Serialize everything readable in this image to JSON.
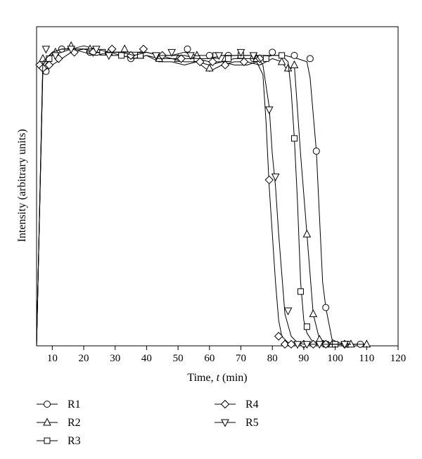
{
  "chart_data": {
    "type": "line",
    "title": "",
    "xlabel_prefix": "Time, ",
    "xlabel_var": "t",
    "xlabel_suffix": " (min)",
    "ylabel": "Intensity (arbitrary units)",
    "xlim": [
      5,
      120
    ],
    "ylim": [
      0,
      100
    ],
    "xticks": [
      10,
      20,
      30,
      40,
      50,
      60,
      70,
      80,
      90,
      100,
      110,
      120
    ],
    "y_tick_labels": false,
    "grid": false,
    "legend_position": "bottom",
    "series": [
      {
        "name": "R1",
        "marker": "circle",
        "x": [
          5,
          7,
          10,
          13,
          16,
          20,
          24,
          28,
          32,
          36,
          40,
          44,
          48,
          52,
          56,
          60,
          64,
          68,
          72,
          76,
          80,
          84,
          88,
          91,
          92,
          94,
          96,
          97,
          99,
          101,
          104,
          108,
          110
        ],
        "y": [
          0,
          87,
          91,
          92,
          93,
          94,
          93,
          92,
          92,
          91,
          92,
          91,
          91,
          92,
          91,
          91,
          91,
          91,
          91,
          91,
          91,
          91,
          90,
          89,
          84,
          61,
          20,
          12,
          2,
          1,
          0.5,
          0.5,
          0.5
        ],
        "marker_x": [
          8,
          13,
          22,
          35,
          44,
          53,
          60,
          66,
          74,
          80,
          87,
          92,
          94,
          97,
          104,
          108
        ],
        "marker_y": [
          86,
          93,
          92,
          90,
          90,
          93,
          91,
          91,
          90,
          92,
          91,
          90,
          61,
          12,
          0.5,
          0.5
        ]
      },
      {
        "name": "R2",
        "marker": "triangle-up",
        "x": [
          5,
          7,
          10,
          13,
          16,
          20,
          24,
          28,
          32,
          36,
          40,
          44,
          48,
          52,
          56,
          60,
          64,
          68,
          72,
          76,
          80,
          83,
          85,
          87,
          89,
          91,
          93,
          95,
          98,
          101,
          105,
          110
        ],
        "y": [
          0,
          88,
          92,
          93,
          93,
          93,
          92,
          92,
          91,
          90,
          91,
          89,
          89,
          88,
          89,
          86,
          88,
          89,
          89,
          88,
          90,
          89,
          86,
          88,
          60,
          35,
          10,
          2,
          1,
          0.5,
          0.5,
          0.5
        ],
        "marker_x": [
          7,
          11,
          16,
          22,
          28,
          33,
          38,
          44,
          50,
          56,
          60,
          65,
          70,
          75,
          83,
          85,
          87,
          91,
          93,
          95,
          99,
          105,
          110
        ],
        "marker_y": [
          90,
          92,
          94,
          93,
          92,
          93,
          91,
          90,
          90,
          91,
          87,
          90,
          91,
          90,
          89,
          87,
          88,
          35,
          10,
          2,
          0.5,
          0.5,
          0.5
        ]
      },
      {
        "name": "R3",
        "marker": "square",
        "x": [
          5,
          7,
          10,
          13,
          16,
          20,
          24,
          28,
          32,
          36,
          40,
          44,
          48,
          52,
          56,
          60,
          64,
          68,
          72,
          76,
          80,
          83,
          85,
          86,
          87,
          88,
          89,
          90,
          91,
          93,
          96,
          100,
          105
        ],
        "y": [
          0,
          88,
          92,
          93,
          93,
          93,
          92,
          91,
          91,
          90,
          91,
          90,
          90,
          90,
          90,
          89,
          89,
          90,
          90,
          90,
          91,
          91,
          89,
          80,
          65,
          45,
          20,
          8,
          4,
          1,
          0.5,
          0.5,
          0.5
        ],
        "marker_x": [
          9,
          26,
          32,
          38,
          56,
          62,
          66,
          70,
          78,
          83,
          87,
          89,
          91,
          97,
          100
        ],
        "marker_y": [
          90,
          92,
          91,
          91,
          90,
          91,
          90,
          91,
          90,
          91,
          65,
          17,
          6,
          0.5,
          0.5
        ]
      },
      {
        "name": "R4",
        "marker": "diamond",
        "x": [
          5,
          7,
          10,
          13,
          16,
          20,
          24,
          28,
          32,
          36,
          40,
          44,
          48,
          52,
          56,
          60,
          64,
          68,
          72,
          75,
          77,
          78,
          79,
          80,
          81,
          82,
          83,
          85,
          88,
          92,
          97,
          103
        ],
        "y": [
          0,
          86,
          88,
          90,
          92,
          93,
          93,
          92,
          92,
          92,
          92,
          91,
          90,
          89,
          89,
          88,
          89,
          88,
          88,
          89,
          85,
          70,
          50,
          35,
          20,
          8,
          3,
          1,
          0.5,
          0.5,
          0.5,
          0.5
        ],
        "marker_x": [
          6,
          7,
          9,
          12,
          17,
          23,
          29,
          35,
          39,
          45,
          51,
          57,
          61,
          65,
          71,
          76,
          79,
          82,
          84,
          86,
          90,
          93,
          97,
          103
        ],
        "marker_y": [
          88,
          87,
          88,
          90,
          92,
          92,
          93,
          91,
          93,
          91,
          90,
          89,
          89,
          88,
          89,
          90,
          52,
          3,
          0.5,
          0.5,
          0.5,
          0.5,
          0.5,
          0.5
        ]
      },
      {
        "name": "R5",
        "marker": "triangle-down",
        "x": [
          5,
          7,
          10,
          13,
          16,
          20,
          24,
          28,
          32,
          36,
          40,
          44,
          48,
          52,
          56,
          60,
          64,
          68,
          72,
          75,
          77,
          79,
          80,
          81,
          82,
          84,
          86,
          88,
          90,
          93,
          97,
          101,
          105
        ],
        "y": [
          0,
          89,
          92,
          93,
          93,
          92,
          91,
          92,
          92,
          91,
          92,
          91,
          91,
          91,
          90,
          90,
          91,
          91,
          91,
          91,
          88,
          75,
          60,
          50,
          35,
          10,
          3,
          1,
          0.5,
          0.5,
          0.5,
          0.5,
          0.5
        ],
        "marker_x": [
          8,
          11,
          16,
          24,
          28,
          43,
          48,
          54,
          63,
          70,
          74,
          79,
          81,
          85,
          88,
          91,
          95,
          103
        ],
        "marker_y": [
          93,
          91,
          93,
          93,
          91,
          91,
          92,
          91,
          91,
          92,
          91,
          74,
          53,
          11,
          0.5,
          0.5,
          0.5,
          0.5
        ]
      }
    ]
  },
  "legend": [
    {
      "name": "R1",
      "marker": "circle"
    },
    {
      "name": "R2",
      "marker": "triangle-up"
    },
    {
      "name": "R3",
      "marker": "square"
    },
    {
      "name": "R4",
      "marker": "diamond"
    },
    {
      "name": "R5",
      "marker": "triangle-down"
    }
  ],
  "colors": {
    "line": "#000000",
    "marker_fill": "#ffffff",
    "background": "#ffffff"
  }
}
